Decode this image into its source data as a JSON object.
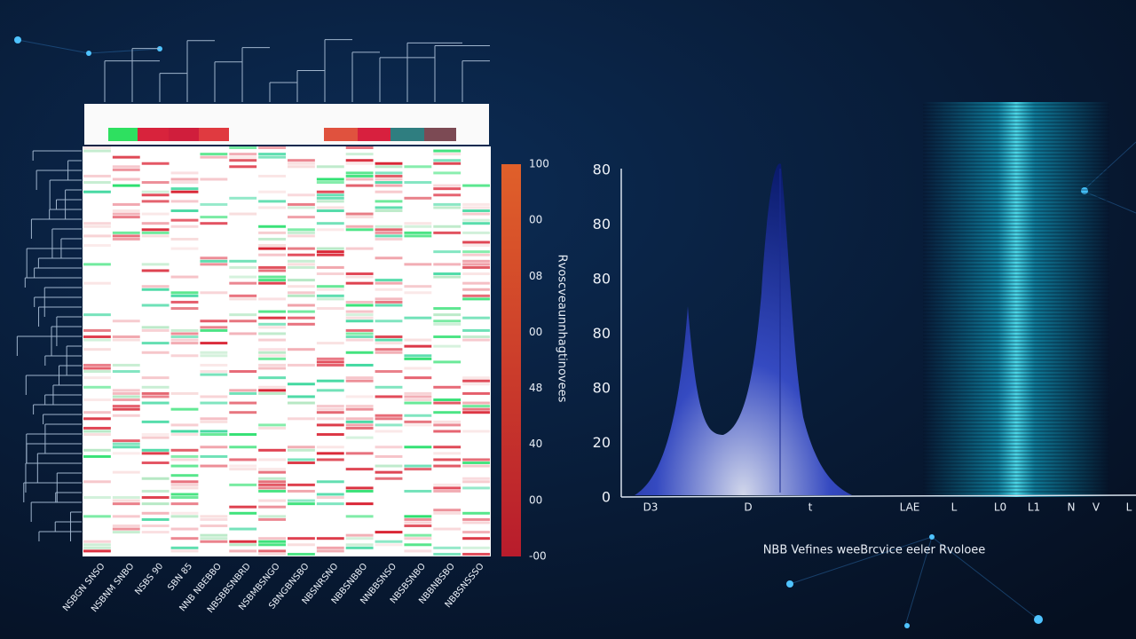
{
  "heatmap": {
    "column_labels": [
      "NSBGN SNSO",
      "NSBNM SNBO",
      "NSBS 90",
      "SBN 85",
      "NNB NBEBBO",
      "NBSBBSNBRD",
      "NSBMBSNGO",
      "SBNGBNSBO",
      "NBSNRSNO",
      "NBBSNBBO",
      "NNBBSNSO",
      "NBSBSNBO",
      "NBBNBSBO",
      "NBBSNSSSO"
    ],
    "colorbar_labels": [
      "100",
      "00",
      "08",
      "00",
      "48",
      "40",
      "00",
      "-00"
    ],
    "colorbar_title": "Rvoscveaunnhagtinovees"
  },
  "density_chart": {
    "y_ticks": [
      "80",
      "80",
      "80",
      "80",
      "80",
      "20",
      "0"
    ],
    "x_labels": [
      "D3",
      "D",
      "t",
      "LAE",
      "L",
      "L0",
      "L1",
      "N",
      "V",
      "L"
    ],
    "x_title": "NBB Vefines weeBrcvice eeler Rvoloee"
  }
}
